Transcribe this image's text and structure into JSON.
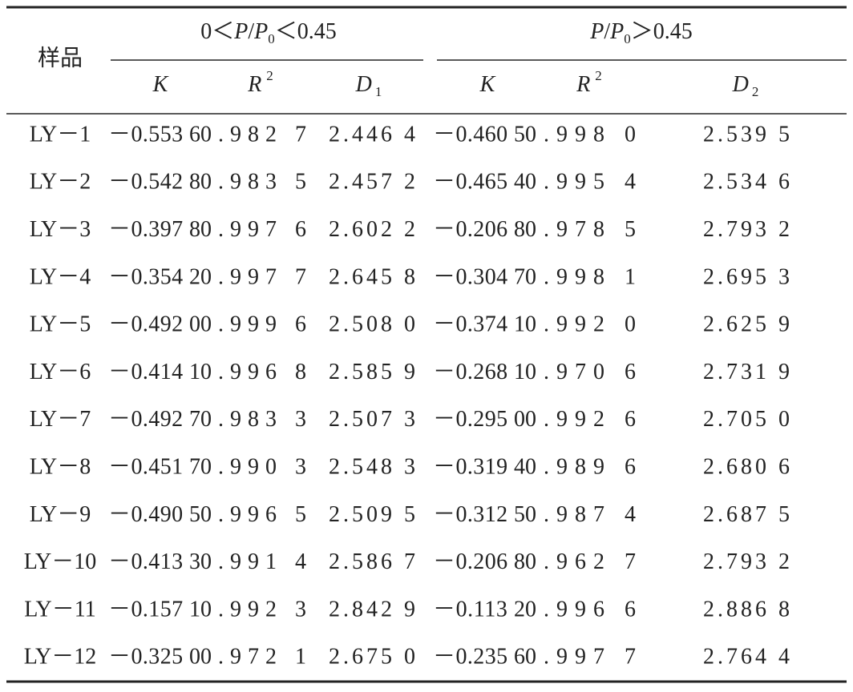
{
  "table": {
    "header": {
      "sample": "样品",
      "group1": [
        "0＜",
        "P",
        "/",
        "P",
        "0",
        "＜0.45"
      ],
      "group2": [
        "P",
        "/",
        "P",
        "0",
        "＞0.45"
      ],
      "columns": [
        {
          "symbol": "K"
        },
        {
          "symbol": "R",
          "sup": "2"
        },
        {
          "symbol": "D",
          "sub": "1"
        },
        {
          "symbol": "K"
        },
        {
          "symbol": "R",
          "sup": "2"
        },
        {
          "symbol": "D",
          "sub": "2"
        }
      ]
    },
    "rows": [
      [
        "LY－1",
        "－0.553 6",
        "0.982 7",
        "2.446 4",
        "－0.460 5",
        "0.998 0",
        "2.539 5"
      ],
      [
        "LY－2",
        "－0.542 8",
        "0.983 5",
        "2.457 2",
        "－0.465 4",
        "0.995 4",
        "2.534 6"
      ],
      [
        "LY－3",
        "－0.397 8",
        "0.997 6",
        "2.602 2",
        "－0.206 8",
        "0.978 5",
        "2.793 2"
      ],
      [
        "LY－4",
        "－0.354 2",
        "0.997 7",
        "2.645 8",
        "－0.304 7",
        "0.998 1",
        "2.695 3"
      ],
      [
        "LY－5",
        "－0.492 0",
        "0.999 6",
        "2.508 0",
        "－0.374 1",
        "0.992 0",
        "2.625 9"
      ],
      [
        "LY－6",
        "－0.414 1",
        "0.996 8",
        "2.585 9",
        "－0.268 1",
        "0.970 6",
        "2.731 9"
      ],
      [
        "LY－7",
        "－0.492 7",
        "0.983 3",
        "2.507 3",
        "－0.295 0",
        "0.992 6",
        "2.705 0"
      ],
      [
        "LY－8",
        "－0.451 7",
        "0.990 3",
        "2.548 3",
        "－0.319 4",
        "0.989 6",
        "2.680 6"
      ],
      [
        "LY－9",
        "－0.490 5",
        "0.996 5",
        "2.509 5",
        "－0.312 5",
        "0.987 4",
        "2.687 5"
      ],
      [
        "LY－10",
        "－0.413 3",
        "0.991 4",
        "2.586 7",
        "－0.206 8",
        "0.962 7",
        "2.793 2"
      ],
      [
        "LY－11",
        "－0.157 1",
        "0.992 3",
        "2.842 9",
        "－0.113 2",
        "0.996 6",
        "2.886 8"
      ],
      [
        "LY－12",
        "－0.325 0",
        "0.972 1",
        "2.675 0",
        "－0.235 6",
        "0.997 7",
        "2.764 4"
      ]
    ]
  }
}
